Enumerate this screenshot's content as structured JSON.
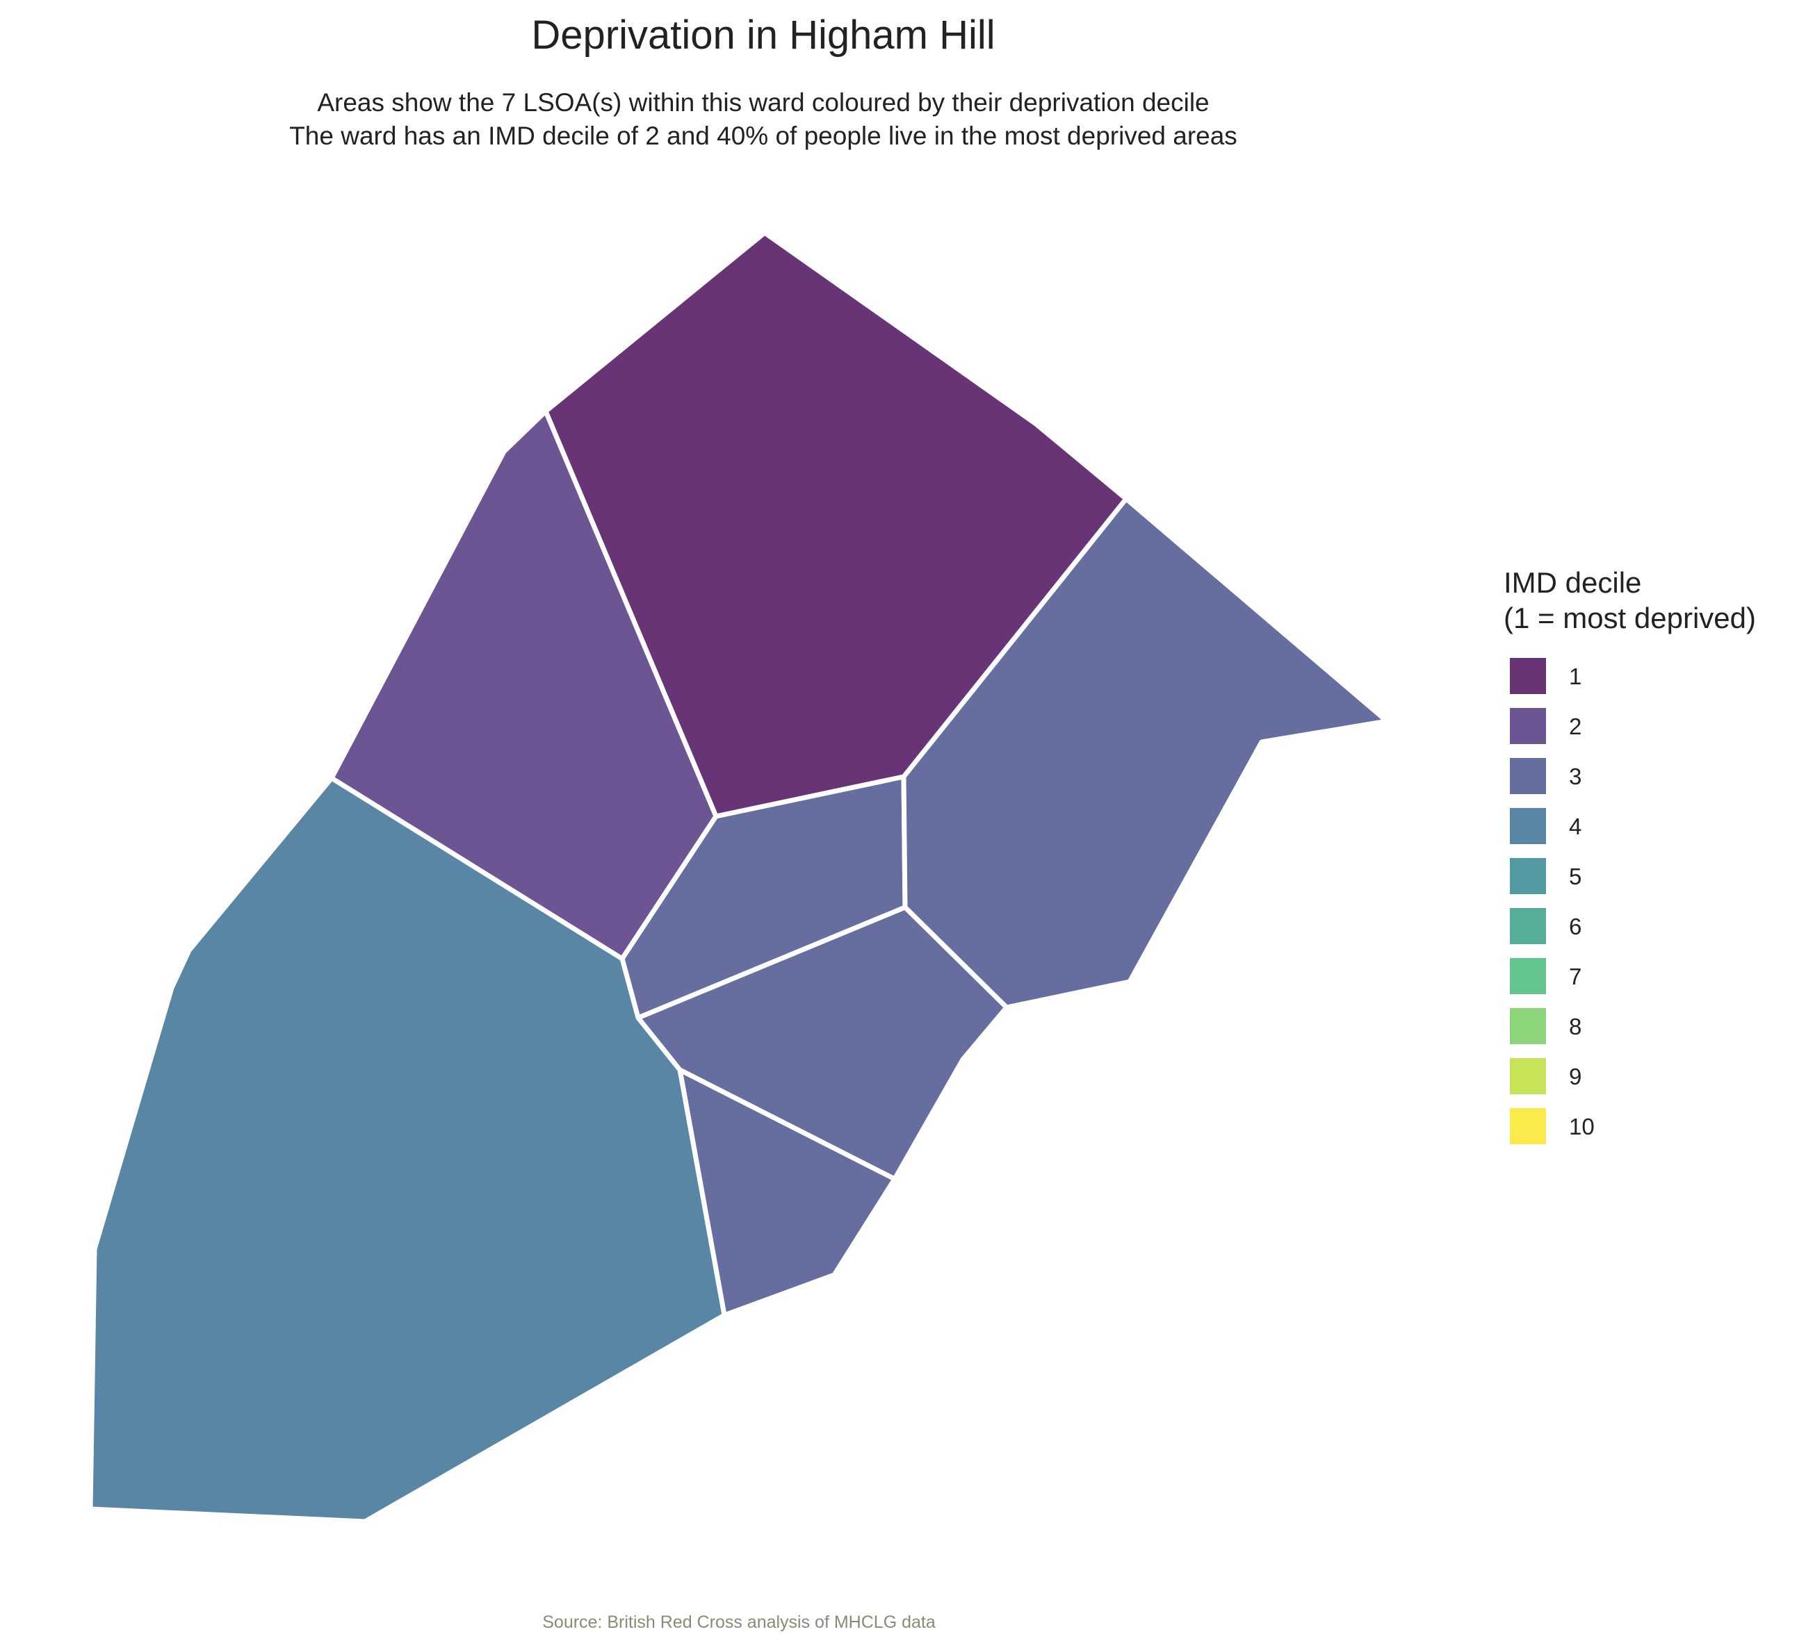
{
  "title": "Deprivation in Higham Hill",
  "subtitle_line1": "Areas show the 7 LSOA(s) within this ward coloured by their deprivation decile",
  "subtitle_line2": "The ward has an IMD decile of 2 and 40% of people live in the most deprived areas",
  "caption": "Source: British Red Cross analysis of MHCLG data",
  "legend": {
    "title_line1": "IMD decile",
    "title_line2": "(1 = most deprived)",
    "items": [
      {
        "label": "1",
        "color": "#693476"
      },
      {
        "label": "2",
        "color": "#6d5593"
      },
      {
        "label": "3",
        "color": "#656e9f"
      },
      {
        "label": "4",
        "color": "#5986a4"
      },
      {
        "label": "5",
        "color": "#5399a1"
      },
      {
        "label": "6",
        "color": "#54ae9a"
      },
      {
        "label": "7",
        "color": "#64c48e"
      },
      {
        "label": "8",
        "color": "#8dd57a"
      },
      {
        "label": "9",
        "color": "#c7e358"
      },
      {
        "label": "10",
        "color": "#fce94b"
      }
    ]
  },
  "lsoas": [
    {
      "decile": 1
    },
    {
      "decile": 2
    },
    {
      "decile": 3
    },
    {
      "decile": 3
    },
    {
      "decile": 3
    },
    {
      "decile": 3
    },
    {
      "decile": 4
    }
  ]
}
